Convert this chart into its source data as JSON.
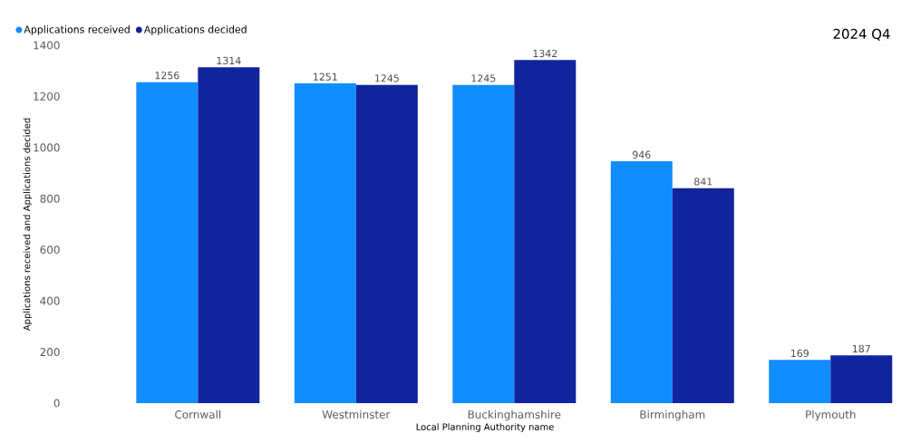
{
  "chart_data": {
    "type": "bar",
    "title": "2024 Q4",
    "xlabel": "Local Planning Authority name",
    "ylabel": "Applications received and Applications decided",
    "categories": [
      "Cornwall",
      "Westminster",
      "Buckinghamshire",
      "Birmingham",
      "Plymouth"
    ],
    "series": [
      {
        "name": "Applications received",
        "color": "#118dff",
        "values": [
          1256,
          1251,
          1245,
          946,
          169
        ]
      },
      {
        "name": "Applications decided",
        "color": "#12239e",
        "values": [
          1314,
          1245,
          1342,
          841,
          187
        ]
      }
    ],
    "ylim": [
      0,
      1400
    ],
    "yticks": [
      0,
      200,
      400,
      600,
      800,
      1000,
      1200,
      1400
    ],
    "grid": "y",
    "legend": "top left",
    "data_labels": true
  }
}
